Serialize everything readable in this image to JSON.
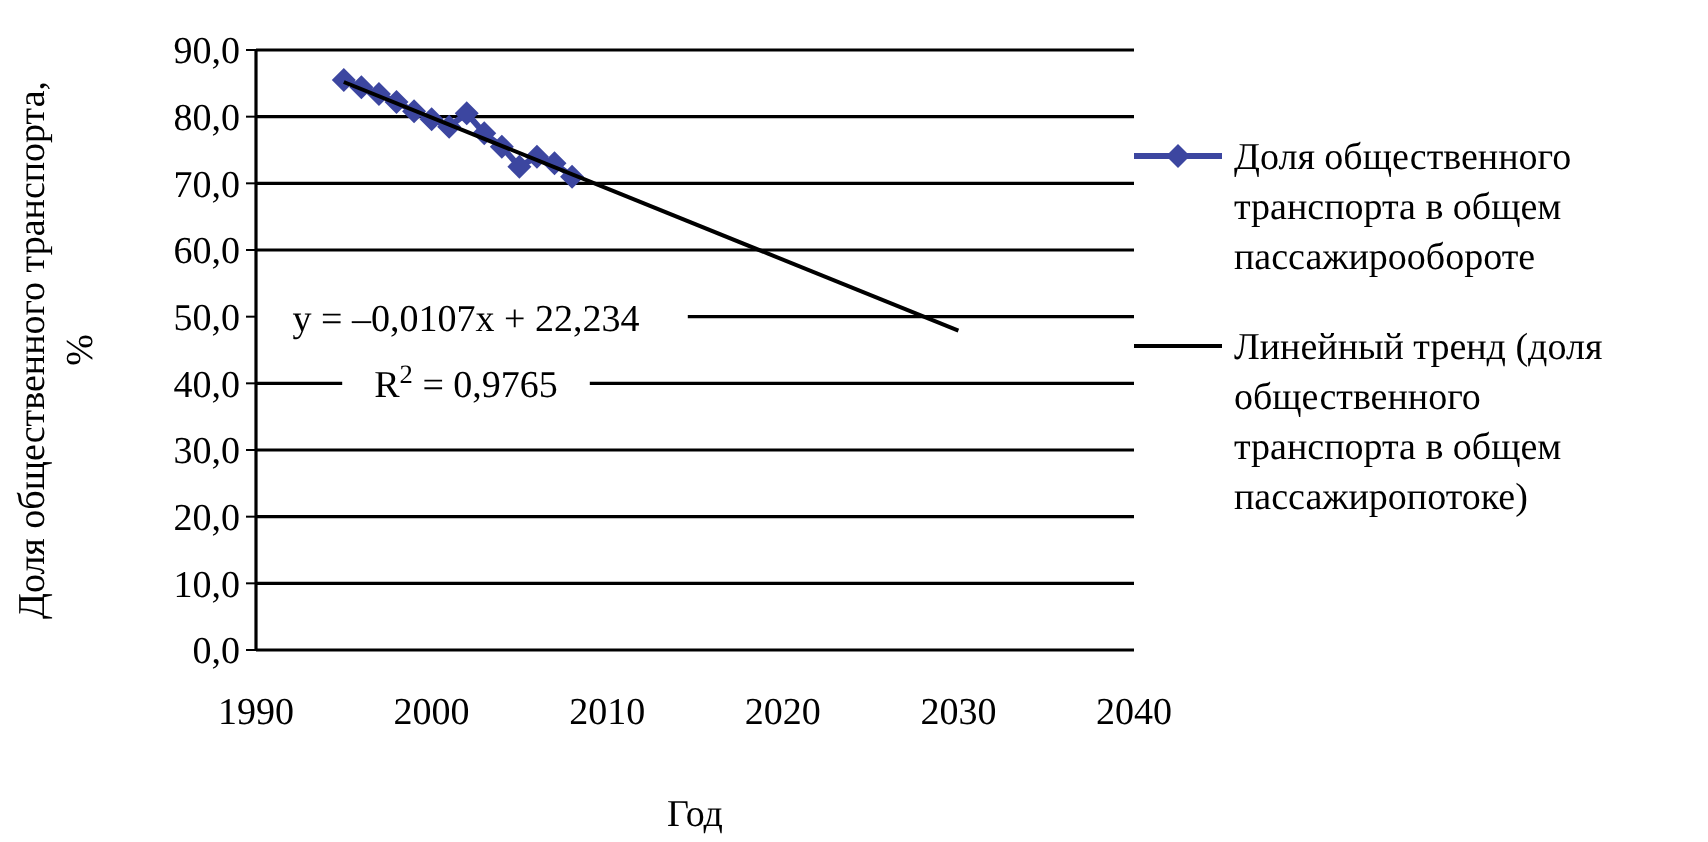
{
  "chart_data": {
    "type": "line",
    "xlabel": "Год",
    "ylabel": "Доля общественного транспорта, %",
    "xlim": [
      1990,
      2040
    ],
    "xticks": [
      1990,
      2000,
      2010,
      2020,
      2030,
      2040
    ],
    "ylim": [
      0,
      90
    ],
    "yticks": [
      {
        "value": 0,
        "label": "0,0"
      },
      {
        "value": 10,
        "label": "10,0"
      },
      {
        "value": 20,
        "label": "20,0"
      },
      {
        "value": 30,
        "label": "30,0"
      },
      {
        "value": 40,
        "label": "40,0"
      },
      {
        "value": 50,
        "label": "50,0"
      },
      {
        "value": 60,
        "label": "60,0"
      },
      {
        "value": 70,
        "label": "70,0"
      },
      {
        "value": 80,
        "label": "80,0"
      },
      {
        "value": 90,
        "label": "90,0"
      }
    ],
    "grid": "y",
    "legend": "right",
    "series": [
      {
        "name": "Доля общественного транспорта в общем пассажирообороте",
        "color": "#3c46a0",
        "marker": "diamond",
        "x": [
          1995,
          1996,
          1997,
          1998,
          1999,
          2000,
          2001,
          2002,
          2003,
          2004,
          2005,
          2006,
          2007,
          2008
        ],
        "values": [
          85.5,
          84.4,
          83.4,
          82.2,
          80.8,
          79.6,
          78.5,
          80.5,
          77.5,
          75.5,
          72.5,
          74.0,
          73.0,
          71.0
        ]
      },
      {
        "name": "Линейный тренд (доля общественного транспорта в общем пассажиропотоке)",
        "color": "#000000",
        "marker": "none",
        "x": [
          1995,
          2030
        ],
        "values": [
          85.2,
          47.9
        ]
      }
    ],
    "annotations": [
      "y = –0,0107x + 22,234",
      "R$^{2}$ = 0,9765"
    ]
  }
}
